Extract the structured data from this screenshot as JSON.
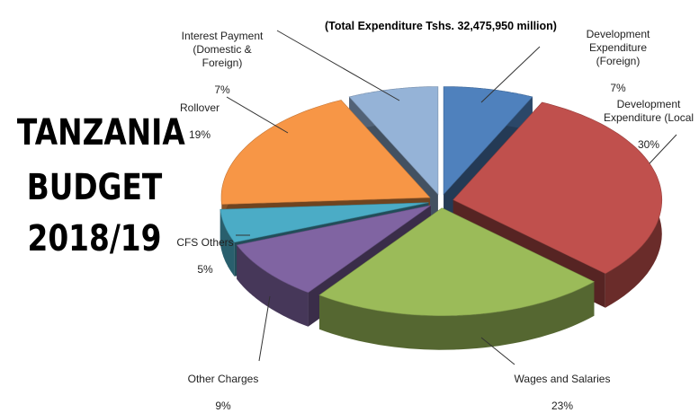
{
  "heading": {
    "line1": "TANZANIA",
    "line2": "BUDGET",
    "line3": "2018/19"
  },
  "chart_data": {
    "type": "pie",
    "subtitle": "(Total Expenditure Tshs. 32,475,950 million)",
    "slices": [
      {
        "label": "Development\nExpenditure\n(Foreign)",
        "percent_label": "7%",
        "value": 7,
        "color": "#4f81bd"
      },
      {
        "label": "Development\nExpenditure (Local",
        "percent_label": "30%",
        "value": 30,
        "color": "#c0504d"
      },
      {
        "label": "Wages and Salaries",
        "percent_label": "23%",
        "value": 23,
        "color": "#9bbb59"
      },
      {
        "label": "Other Charges",
        "percent_label": "9%",
        "value": 9,
        "color": "#8064a2"
      },
      {
        "label": "CFS Others",
        "percent_label": "5%",
        "value": 5,
        "color": "#4bacc6"
      },
      {
        "label": "Rollover",
        "percent_label": "19%",
        "value": 19,
        "color": "#f79646"
      },
      {
        "label": "Interest Payment\n(Domestic &\nForeign)",
        "percent_label": "7%",
        "value": 7,
        "color": "#95b3d7"
      }
    ]
  }
}
